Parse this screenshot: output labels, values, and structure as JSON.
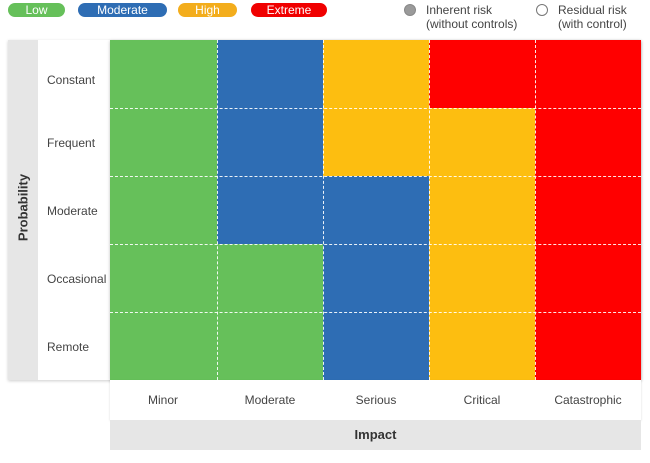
{
  "legend": {
    "levels": [
      {
        "label": "Low",
        "color": "#66c05a"
      },
      {
        "label": "Moderate",
        "color": "#2e6db4"
      },
      {
        "label": "High",
        "color": "#f3ad1c"
      },
      {
        "label": "Extreme",
        "color": "#f00000"
      }
    ],
    "markers": [
      {
        "line1": "Inherent risk",
        "line2": "(without controls)",
        "style": "filled"
      },
      {
        "line1": "Residual risk",
        "line2": "(with control)",
        "style": "hollow"
      }
    ]
  },
  "matrix": {
    "probability_title": "Probability",
    "impact_title": "Impact",
    "rows": [
      "Constant",
      "Frequent",
      "Moderate",
      "Occasional",
      "Remote"
    ],
    "columns": [
      "Minor",
      "Moderate",
      "Serious",
      "Critical",
      "Catastrophic"
    ],
    "level_colors": {
      "Low": "#66c05a",
      "Moderate": "#2e6db4",
      "High": "#fdbe10",
      "Extreme": "#ff0000"
    },
    "cells": [
      [
        "Low",
        "Moderate",
        "High",
        "Extreme",
        "Extreme"
      ],
      [
        "Low",
        "Moderate",
        "High",
        "High",
        "Extreme"
      ],
      [
        "Low",
        "Moderate",
        "Moderate",
        "High",
        "Extreme"
      ],
      [
        "Low",
        "Low",
        "Moderate",
        "High",
        "Extreme"
      ],
      [
        "Low",
        "Low",
        "Moderate",
        "High",
        "Extreme"
      ]
    ]
  }
}
